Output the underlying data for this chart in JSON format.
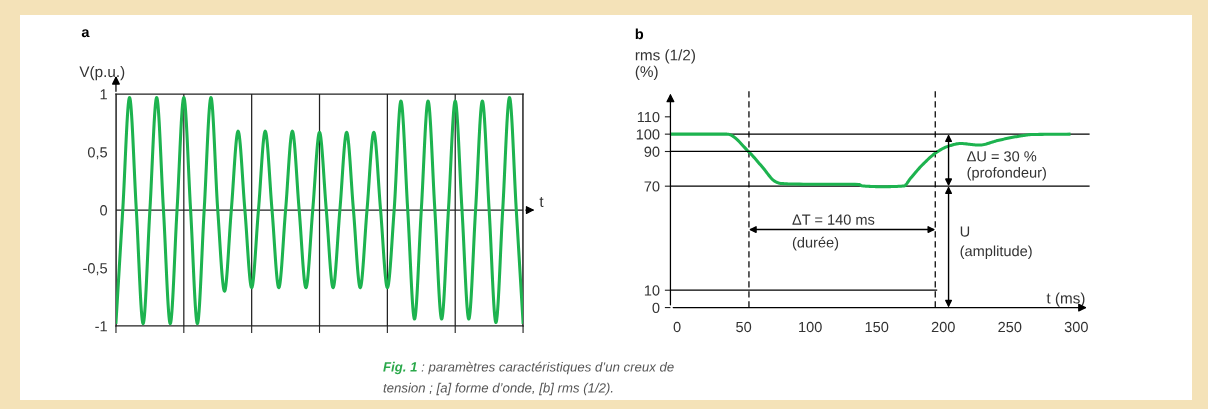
{
  "chart_data": [
    {
      "type": "line",
      "title": "a",
      "xlabel": "t",
      "ylabel": "V(p.u.)",
      "categories": [
        null,
        null,
        null,
        null,
        null,
        null,
        null,
        null,
        null,
        null,
        null,
        null,
        null,
        null,
        null,
        null,
        null,
        null,
        null,
        null,
        null,
        null,
        null,
        null,
        null,
        null,
        null,
        null,
        null,
        null,
        null,
        null,
        null,
        null,
        null,
        null,
        null,
        null,
        null,
        null,
        null,
        null,
        null,
        null,
        null,
        null,
        null,
        null,
        null,
        null,
        null,
        null,
        null,
        null,
        null,
        null,
        null,
        null,
        null,
        null,
        null
      ],
      "series": [
        {
          "color": "#1db34f",
          "values": [
            -0.97,
            0,
            0.97,
            0,
            -0.98,
            0,
            0.97,
            0,
            -0.98,
            0,
            0.97,
            0,
            -0.98,
            0,
            0.97,
            0,
            -0.7,
            0,
            0.68,
            0,
            -0.67,
            0,
            0.68,
            0,
            -0.67,
            0,
            0.68,
            0,
            -0.67,
            0,
            0.67,
            0,
            -0.67,
            0,
            0.67,
            0,
            -0.67,
            0,
            0.67,
            0,
            -0.67,
            0,
            0.94,
            0,
            -0.94,
            0,
            0.94,
            0,
            -0.94,
            0,
            0.94,
            0,
            -0.94,
            0,
            0.94,
            0,
            -0.97,
            0,
            0.97,
            0,
            -0.97
          ]
        }
      ],
      "ylim": [
        -1,
        1
      ],
      "yticks": [
        {
          "value": -1,
          "label": "-1"
        },
        {
          "value": -0.5,
          "label": "-0,5"
        },
        0,
        {
          "value": 0.5,
          "label": "0,5"
        },
        1
      ],
      "ref_lines": [
        {
          "axis": "y",
          "value": 0,
          "color": "#222222",
          "line_style": "solid"
        }
      ],
      "grid": "x"
    },
    {
      "type": "line",
      "title": "b",
      "xlabel": "t (ms)",
      "ylabel": "rms (1/2)\n(%)",
      "series": [
        {
          "color": "#1db34f",
          "x": [
            -5,
            37.6,
            53.9,
            63.9,
            73.9,
            77.7,
            89,
            136.6,
            139,
            154,
            170.4,
            175.4,
            184.2,
            195.5,
            204,
            213,
            226.8,
            241.8,
            256.9,
            267,
            294.5
          ],
          "values": [
            100,
            100,
            89.8,
            81.2,
            72.6,
            71.6,
            71.2,
            71,
            70.2,
            69.7,
            70.1,
            74.5,
            82.2,
            89.8,
            93.1,
            94.6,
            93.7,
            96.5,
            98.8,
            99.8,
            100
          ]
        },
        {
          "color": "#000000",
          "x": [
            -5,
            195
          ],
          "values": [
            90,
            90
          ]
        },
        {
          "color": "#000000",
          "x": [
            -5,
            195
          ],
          "values": [
            10,
            10
          ]
        }
      ],
      "xlim": [
        -5,
        310
      ],
      "ylim": [
        0,
        125
      ],
      "xticks": [
        0,
        50,
        100,
        150,
        200,
        250,
        300
      ],
      "yticks": [
        0,
        10,
        70,
        90,
        100,
        110
      ],
      "ref_lines": [
        {
          "axis": "x",
          "value": 54,
          "color": "#000000",
          "line_style": "dashed"
        },
        {
          "axis": "x",
          "value": 194,
          "color": "#000000",
          "line_style": "dashed"
        },
        {
          "axis": "y",
          "value": 100,
          "color": "#000000",
          "line_style": "solid"
        },
        {
          "axis": "y",
          "value": 70,
          "color": "#000000",
          "line_style": "solid"
        }
      ],
      "annotations": [
        "Fig. 1",
        " : paramètres caractéristiques d’un creux de\ntension ; [a] forme d’onde, [b] rms (1/2).",
        "ΔT = 140 ms",
        "(durée)",
        {
          "text": "ΔU = 30 %\n(profondeur)",
          "x": 204,
          "y": 70
        },
        "U",
        "(amplitude)"
      ]
    }
  ]
}
